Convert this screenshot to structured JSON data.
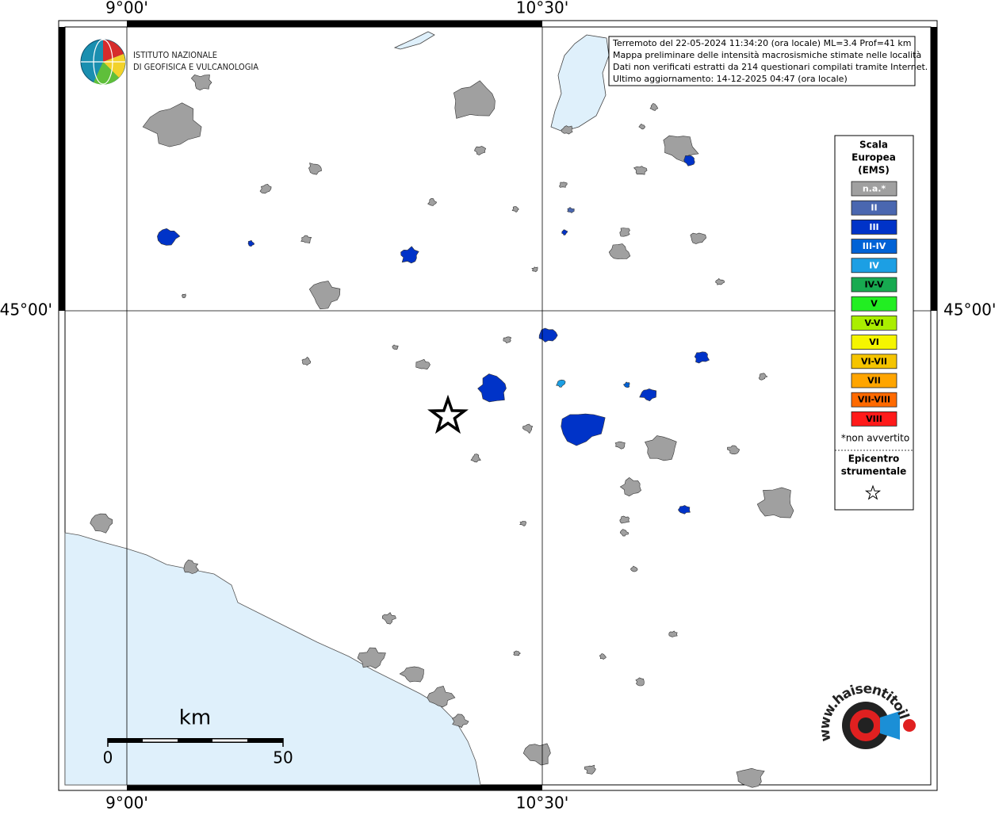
{
  "axes": {
    "top": [
      "9°00'",
      "10°30'"
    ],
    "bottom": [
      "9°00'",
      "10°30'"
    ],
    "left": [
      "45°00'"
    ],
    "right": [
      "45°00'"
    ]
  },
  "logo": {
    "lines": [
      "ISTITUTO NAZIONALE",
      "DI GEOFISICA E VULCANOLOGIA"
    ]
  },
  "info": {
    "lines": [
      "Terremoto del 22-05-2024 11:34:20 (ora locale) ML=3.4 Prof=41 km",
      "Mappa preliminare delle intensità macrosismiche stimate nelle località",
      "Dati non verificati estratti da 214 questionari compilati tramite Internet.",
      "Ultimo aggiornamento: 14-12-2025 04:47 (ora locale)"
    ]
  },
  "legend": {
    "title": [
      "Scala",
      "Europea",
      "(EMS)"
    ],
    "items": [
      {
        "label": "n.a.*",
        "color": "#a0a0a0",
        "text_color": "#ffffff"
      },
      {
        "label": "II",
        "color": "#4a67b0",
        "text_color": "#ffffff"
      },
      {
        "label": "III",
        "color": "#0033c8",
        "text_color": "#ffffff"
      },
      {
        "label": "III-IV",
        "color": "#0062d6",
        "text_color": "#ffffff"
      },
      {
        "label": "IV",
        "color": "#1c9fe4",
        "text_color": "#ffffff"
      },
      {
        "label": "IV-V",
        "color": "#17aa50",
        "text_color": "#000000"
      },
      {
        "label": "V",
        "color": "#22ee22",
        "text_color": "#000000"
      },
      {
        "label": "V-VI",
        "color": "#aaee00",
        "text_color": "#000000"
      },
      {
        "label": "VI",
        "color": "#f5f500",
        "text_color": "#000000"
      },
      {
        "label": "VI-VII",
        "color": "#f5c400",
        "text_color": "#000000"
      },
      {
        "label": "VII",
        "color": "#ffa500",
        "text_color": "#000000"
      },
      {
        "label": "VII-VIII",
        "color": "#ff6a00",
        "text_color": "#000000"
      },
      {
        "label": "VIII",
        "color": "#ff1a1a",
        "text_color": "#000000"
      }
    ],
    "note": "*non avvertito",
    "epicenter_title": [
      "Epicentro",
      "strumentale"
    ]
  },
  "scale_bar": {
    "unit": "km",
    "labels": [
      "0",
      "50"
    ]
  },
  "site_logo": {
    "text": "www.haisentitoilterremoto.it"
  }
}
